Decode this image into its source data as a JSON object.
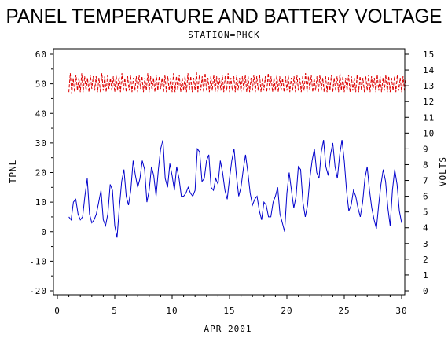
{
  "chart_data": {
    "type": "line",
    "title": "PANEL TEMPERATURE AND BATTERY VOLTAGE",
    "subtitle": "STATION=PHCK",
    "xlabel": "APR 2001",
    "ylabel_left": "TPNL",
    "ylabel_right": "VOLTS",
    "xlim": [
      0,
      30
    ],
    "ylim_left": [
      -20,
      60
    ],
    "ylim_right": [
      0,
      15
    ],
    "x_ticks": [
      "0",
      "5",
      "10",
      "15",
      "20",
      "25",
      "30"
    ],
    "y_left_ticks": [
      "-20",
      "-10",
      "0",
      "10",
      "20",
      "30",
      "40",
      "50",
      "60"
    ],
    "y_right_ticks": [
      "0",
      "1",
      "2",
      "3",
      "4",
      "5",
      "6",
      "7",
      "8",
      "9",
      "10",
      "11",
      "12",
      "13",
      "14",
      "15"
    ],
    "grid": false,
    "series": [
      {
        "name": "",
        "axis": "left",
        "color": "#0000cc",
        "style": "solid",
        "x": [
          1.0,
          1.2,
          1.4,
          1.6,
          1.8,
          2.0,
          2.2,
          2.4,
          2.6,
          2.8,
          3.0,
          3.2,
          3.4,
          3.6,
          3.8,
          4.0,
          4.2,
          4.4,
          4.6,
          4.8,
          5.0,
          5.2,
          5.4,
          5.6,
          5.8,
          6.0,
          6.2,
          6.4,
          6.6,
          6.8,
          7.0,
          7.2,
          7.4,
          7.6,
          7.8,
          8.0,
          8.2,
          8.4,
          8.6,
          8.8,
          9.0,
          9.2,
          9.4,
          9.6,
          9.8,
          10.0,
          10.2,
          10.4,
          10.6,
          10.8,
          11.0,
          11.2,
          11.4,
          11.6,
          11.8,
          12.0,
          12.2,
          12.4,
          12.6,
          12.8,
          13.0,
          13.2,
          13.4,
          13.6,
          13.8,
          14.0,
          14.2,
          14.4,
          14.6,
          14.8,
          15.0,
          15.2,
          15.4,
          15.6,
          15.8,
          16.0,
          16.2,
          16.4,
          16.6,
          16.8,
          17.0,
          17.2,
          17.4,
          17.6,
          17.8,
          18.0,
          18.2,
          18.4,
          18.6,
          18.8,
          19.0,
          19.2,
          19.4,
          19.6,
          19.8,
          20.0,
          20.2,
          20.4,
          20.6,
          20.8,
          21.0,
          21.2,
          21.4,
          21.6,
          21.8,
          22.0,
          22.2,
          22.4,
          22.6,
          22.8,
          23.0,
          23.2,
          23.4,
          23.6,
          23.8,
          24.0,
          24.2,
          24.4,
          24.6,
          24.8,
          25.0,
          25.2,
          25.4,
          25.6,
          25.8,
          26.0,
          26.2,
          26.4,
          26.6,
          26.8,
          27.0,
          27.2,
          27.4,
          27.6,
          27.8,
          28.0,
          28.2,
          28.4,
          28.6,
          28.8,
          29.0,
          29.2,
          29.4,
          29.6,
          29.8,
          30.0
        ],
        "y": [
          5,
          4,
          10,
          11,
          6,
          4,
          5,
          12,
          18,
          6,
          3,
          4,
          6,
          10,
          14,
          4,
          2,
          6,
          16,
          14,
          2,
          -2,
          8,
          17,
          21,
          12,
          9,
          14,
          24,
          19,
          15,
          18,
          24,
          21,
          10,
          14,
          22,
          19,
          12,
          21,
          28,
          31,
          18,
          15,
          23,
          19,
          14,
          22,
          18,
          12,
          12,
          13,
          15,
          13,
          12,
          14,
          28,
          27,
          17,
          18,
          24,
          26,
          15,
          14,
          18,
          16,
          24,
          20,
          14,
          11,
          18,
          24,
          28,
          19,
          12,
          15,
          21,
          26,
          20,
          13,
          9,
          11,
          12,
          7,
          4,
          10,
          9,
          5,
          5,
          10,
          12,
          15,
          6,
          3,
          0,
          13,
          20,
          14,
          8,
          12,
          22,
          21,
          10,
          5,
          9,
          18,
          24,
          28,
          20,
          18,
          27,
          31,
          22,
          19,
          26,
          30,
          22,
          18,
          26,
          31,
          24,
          14,
          7,
          9,
          14,
          12,
          8,
          5,
          10,
          18,
          22,
          14,
          8,
          4,
          1,
          9,
          16,
          21,
          17,
          8,
          2,
          14,
          21,
          16,
          7,
          3
        ]
      },
      {
        "name": "",
        "axis": "right",
        "color": "#dd0000",
        "style": "dashed",
        "x_start": 1.0,
        "x_step": 0.125,
        "y": [
          12.6,
          13.8,
          12.5,
          13.5,
          12.6,
          13.7,
          12.7,
          13.5,
          12.6,
          13.8,
          12.6,
          13.6,
          12.7,
          13.5,
          12.6,
          13.7,
          12.8,
          13.6,
          12.7,
          13.6,
          12.6,
          13.5,
          12.6,
          13.8,
          12.7,
          13.6,
          12.6,
          13.7,
          12.8,
          13.5,
          12.7,
          13.6,
          12.6,
          13.7,
          12.7,
          13.6,
          12.6,
          13.8,
          12.7,
          13.5,
          12.6,
          13.6,
          12.7,
          13.7,
          12.6,
          13.5,
          12.7,
          13.6,
          12.6,
          13.7,
          12.8,
          13.6,
          12.6,
          13.5,
          12.7,
          13.8,
          12.6,
          13.6,
          12.7,
          13.5,
          12.6,
          13.7,
          12.7,
          13.6,
          12.8,
          13.5,
          12.6,
          13.7,
          12.6,
          13.6,
          12.7,
          13.5,
          12.6,
          13.8,
          12.6,
          13.6,
          12.7,
          13.7,
          12.6,
          13.5,
          12.7,
          13.6,
          12.6,
          13.8,
          12.7,
          13.6,
          12.6,
          13.5,
          12.7,
          13.9,
          12.6,
          13.7,
          12.7,
          13.6,
          12.6,
          13.8,
          12.7,
          13.5,
          12.6,
          13.6,
          12.7,
          13.7,
          12.6,
          13.6,
          12.6,
          13.5,
          12.7,
          13.7,
          12.6,
          13.6,
          12.7,
          13.8,
          12.6,
          13.5,
          12.7,
          13.6,
          12.6,
          13.7,
          12.7,
          13.5,
          12.6,
          13.6,
          12.7,
          13.7,
          12.6,
          13.6,
          12.6,
          13.5,
          12.7,
          13.7,
          12.6,
          13.6,
          12.7,
          13.7,
          12.6,
          13.5,
          12.7,
          13.6,
          12.6,
          13.8,
          12.7,
          13.6,
          12.6,
          13.5,
          12.7,
          13.7,
          12.6,
          13.6,
          12.7,
          13.5,
          12.6,
          13.6,
          12.7,
          13.7,
          12.6,
          13.5,
          12.7,
          13.6,
          12.6,
          13.7,
          12.7,
          13.5,
          12.6,
          13.6,
          12.7,
          13.8,
          12.6,
          13.6,
          12.7,
          13.7,
          12.6,
          13.5,
          12.7,
          13.6,
          12.6,
          13.7,
          12.7,
          13.5,
          12.6,
          13.6,
          12.6,
          13.6,
          12.7,
          13.7,
          12.6,
          13.5,
          12.7,
          13.6,
          12.6,
          13.8,
          12.7,
          13.6,
          12.6,
          13.5,
          12.7,
          13.7,
          12.6,
          13.6,
          12.7,
          13.5,
          12.6,
          13.7,
          12.6,
          13.6,
          12.7,
          13.5,
          12.6,
          13.6,
          12.7,
          13.7,
          12.6,
          13.6,
          12.7,
          13.5,
          12.6,
          13.7,
          12.7,
          13.6,
          12.6,
          13.5,
          12.7,
          13.7,
          12.6,
          13.6,
          12.6,
          13.5,
          12.7,
          13.6,
          12.6,
          13.7,
          12.7,
          13.5,
          12.6,
          13.6,
          12.7,
          13.5
        ]
      }
    ]
  }
}
